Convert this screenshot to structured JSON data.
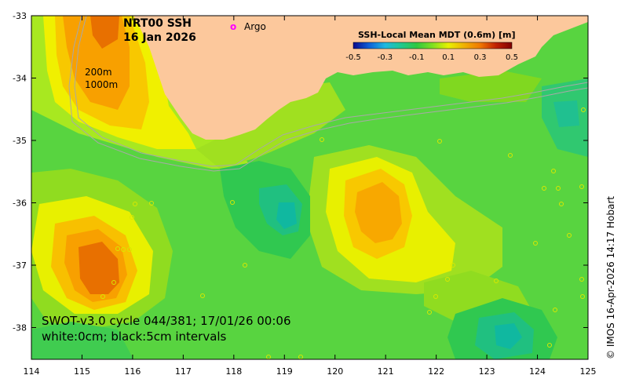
{
  "map": {
    "title_line1": "NRT00 SSH",
    "title_line2": "16 Jan 2026",
    "argo_label": "Argo",
    "argo_marker": "o",
    "argo_color": "#ff00ff",
    "depth_label_1": "200m",
    "depth_label_2": "1000m",
    "colorbar_title": "SSH-Local Mean MDT (0.6m) [m]",
    "colorbar_ticks": [
      "-0.5",
      "-0.3",
      "-0.1",
      "0.1",
      "0.3",
      "0.5"
    ],
    "colorbar_colors": [
      "#0a0a8c",
      "#1060d8",
      "#20b8e0",
      "#20c890",
      "#30c840",
      "#80e020",
      "#e8f000",
      "#f0b000",
      "#f07800",
      "#c02000",
      "#800000"
    ],
    "caption_line1": "SWOT-v3.0 cycle 044/381; 17/01/26 00:06",
    "caption_line2": "white:0cm; black:5cm intervals",
    "credit": "© IMOS 16-Apr-2026 14:17 Hobart",
    "x_ticks": [
      "114",
      "115",
      "116",
      "117",
      "118",
      "119",
      "120",
      "121",
      "122",
      "123",
      "124",
      "125"
    ],
    "y_ticks": [
      "-33",
      "-34",
      "-35",
      "-36",
      "-37",
      "-38"
    ],
    "land_color": "#fcc89c",
    "ocean_base_color": "#58d440"
  }
}
